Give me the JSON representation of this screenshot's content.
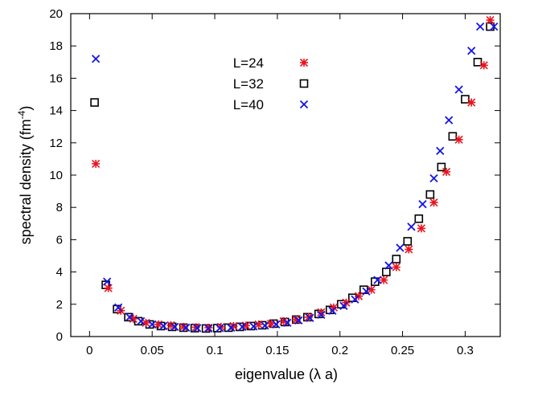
{
  "chart_data": {
    "type": "scatter",
    "title": "",
    "xlabel": "eigenvalue   (λ a)",
    "ylabel": "spectral density (fm",
    "ylabel_sup": "-4",
    "ylabel_suffix": ")",
    "xlim": [
      -0.015,
      0.328
    ],
    "ylim": [
      0,
      20
    ],
    "x_ticks": [
      0,
      0.05,
      0.1,
      0.15,
      0.2,
      0.25,
      0.3
    ],
    "x_tick_labels": [
      "0",
      "0.05",
      "0.1",
      "0.15",
      "0.2",
      "0.25",
      "0.3"
    ],
    "y_ticks": [
      0,
      2,
      4,
      6,
      8,
      10,
      12,
      14,
      16,
      18,
      20
    ],
    "y_tick_labels": [
      "0",
      "2",
      "4",
      "6",
      "8",
      "10",
      "12",
      "14",
      "16",
      "18",
      "20"
    ],
    "grid": false,
    "legend_position": "top-center",
    "series": [
      {
        "name": "L=24",
        "marker": "star",
        "color": "#e8141e",
        "x": [
          0.005,
          0.015,
          0.025,
          0.035,
          0.045,
          0.055,
          0.065,
          0.075,
          0.085,
          0.095,
          0.105,
          0.115,
          0.125,
          0.135,
          0.145,
          0.155,
          0.165,
          0.175,
          0.185,
          0.195,
          0.205,
          0.215,
          0.225,
          0.235,
          0.245,
          0.255,
          0.265,
          0.275,
          0.285,
          0.295,
          0.305,
          0.315,
          0.32
        ],
        "y": [
          10.7,
          3.0,
          1.6,
          1.1,
          0.85,
          0.75,
          0.7,
          0.6,
          0.58,
          0.55,
          0.6,
          0.65,
          0.68,
          0.75,
          0.8,
          0.95,
          1.05,
          1.2,
          1.5,
          1.8,
          2.1,
          2.5,
          2.9,
          3.5,
          4.3,
          5.4,
          6.7,
          8.3,
          10.2,
          12.2,
          14.5,
          16.8,
          19.6
        ]
      },
      {
        "name": "L=32",
        "marker": "square",
        "color": "#000000",
        "x": [
          0.004,
          0.013,
          0.022,
          0.031,
          0.039,
          0.048,
          0.057,
          0.066,
          0.075,
          0.084,
          0.093,
          0.102,
          0.111,
          0.12,
          0.129,
          0.138,
          0.147,
          0.156,
          0.165,
          0.174,
          0.183,
          0.192,
          0.201,
          0.21,
          0.219,
          0.228,
          0.237,
          0.245,
          0.254,
          0.263,
          0.272,
          0.281,
          0.29,
          0.3,
          0.31,
          0.32
        ],
        "y": [
          14.5,
          3.2,
          1.7,
          1.2,
          0.95,
          0.75,
          0.65,
          0.6,
          0.55,
          0.52,
          0.5,
          0.52,
          0.55,
          0.6,
          0.65,
          0.7,
          0.8,
          0.9,
          1.05,
          1.2,
          1.4,
          1.65,
          2.0,
          2.4,
          2.9,
          3.4,
          4.0,
          4.8,
          5.9,
          7.3,
          8.8,
          10.5,
          12.4,
          14.7,
          17.0,
          19.2
        ]
      },
      {
        "name": "L=40",
        "marker": "cross",
        "color": "#1414e8",
        "x": [
          0.005,
          0.014,
          0.023,
          0.032,
          0.041,
          0.05,
          0.059,
          0.068,
          0.077,
          0.086,
          0.095,
          0.104,
          0.113,
          0.122,
          0.131,
          0.14,
          0.149,
          0.158,
          0.167,
          0.176,
          0.185,
          0.194,
          0.203,
          0.212,
          0.221,
          0.23,
          0.239,
          0.248,
          0.257,
          0.266,
          0.275,
          0.28,
          0.287,
          0.295,
          0.305,
          0.312,
          0.323
        ],
        "y": [
          17.2,
          3.4,
          1.8,
          1.2,
          0.95,
          0.75,
          0.65,
          0.6,
          0.55,
          0.52,
          0.5,
          0.52,
          0.55,
          0.6,
          0.63,
          0.68,
          0.75,
          0.85,
          1.0,
          1.15,
          1.35,
          1.6,
          1.9,
          2.3,
          2.8,
          3.5,
          4.4,
          5.5,
          6.8,
          8.2,
          9.8,
          11.5,
          13.4,
          15.3,
          17.7,
          19.2,
          19.2
        ]
      }
    ]
  }
}
